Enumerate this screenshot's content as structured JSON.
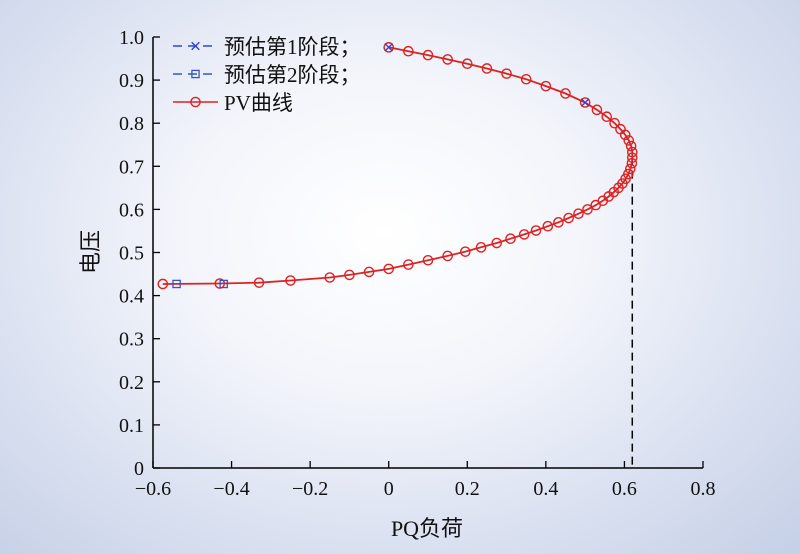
{
  "chart_data": {
    "type": "line",
    "xlabel": "PQ负荷",
    "ylabel": "电压",
    "xlim": [
      -0.6,
      0.8
    ],
    "ylim": [
      0,
      1.0
    ],
    "xticks": [
      -0.6,
      -0.4,
      -0.2,
      0,
      0.2,
      0.4,
      0.6,
      0.8
    ],
    "yticks": [
      0,
      0.1,
      0.2,
      0.3,
      0.4,
      0.5,
      0.6,
      0.7,
      0.8,
      0.9,
      1.0
    ],
    "xtick_labels": [
      "−0.6",
      "−0.4",
      "−0.2",
      "0",
      "0.2",
      "0.4",
      "0.6",
      "0.8"
    ],
    "ytick_labels": [
      "0",
      "0.1",
      "0.2",
      "0.3",
      "0.4",
      "0.5",
      "0.6",
      "0.7",
      "0.8",
      "0.9",
      "1.0"
    ],
    "legend_position": "top-left",
    "nose_point": {
      "x": 0.62,
      "y": 0.72
    },
    "series": [
      {
        "name": "预估第1阶段；",
        "color": "#3344cc",
        "marker": "x",
        "line": "dashed",
        "points": [
          [
            0,
            0.976
          ],
          [
            0.5,
            0.848
          ]
        ]
      },
      {
        "name": "预估第2阶段；",
        "color": "#3355cc",
        "marker": "square",
        "line": "dashed",
        "points": [
          [
            -0.54,
            0.427
          ],
          [
            -0.42,
            0.427
          ]
        ]
      },
      {
        "name": "PV曲线",
        "color": "#dd2222",
        "marker": "circle",
        "line": "solid",
        "points": [
          [
            0,
            0.976
          ],
          [
            0.05,
            0.967
          ],
          [
            0.1,
            0.958
          ],
          [
            0.15,
            0.948
          ],
          [
            0.2,
            0.938
          ],
          [
            0.25,
            0.927
          ],
          [
            0.3,
            0.915
          ],
          [
            0.35,
            0.902
          ],
          [
            0.4,
            0.886
          ],
          [
            0.45,
            0.869
          ],
          [
            0.5,
            0.848
          ],
          [
            0.53,
            0.831
          ],
          [
            0.555,
            0.815
          ],
          [
            0.575,
            0.8
          ],
          [
            0.59,
            0.786
          ],
          [
            0.602,
            0.773
          ],
          [
            0.611,
            0.76
          ],
          [
            0.617,
            0.747
          ],
          [
            0.62,
            0.733
          ],
          [
            0.62,
            0.72
          ],
          [
            0.619,
            0.707
          ],
          [
            0.615,
            0.694
          ],
          [
            0.61,
            0.682
          ],
          [
            0.603,
            0.671
          ],
          [
            0.595,
            0.66
          ],
          [
            0.585,
            0.65
          ],
          [
            0.573,
            0.64
          ],
          [
            0.56,
            0.63
          ],
          [
            0.545,
            0.62
          ],
          [
            0.527,
            0.61
          ],
          [
            0.506,
            0.6
          ],
          [
            0.483,
            0.59
          ],
          [
            0.458,
            0.58
          ],
          [
            0.432,
            0.57
          ],
          [
            0.405,
            0.561
          ],
          [
            0.375,
            0.551
          ],
          [
            0.345,
            0.542
          ],
          [
            0.31,
            0.532
          ],
          [
            0.275,
            0.522
          ],
          [
            0.235,
            0.512
          ],
          [
            0.195,
            0.502
          ],
          [
            0.15,
            0.492
          ],
          [
            0.1,
            0.482
          ],
          [
            0.05,
            0.472
          ],
          [
            0,
            0.462
          ],
          [
            -0.05,
            0.455
          ],
          [
            -0.1,
            0.448
          ],
          [
            -0.15,
            0.442
          ],
          [
            -0.25,
            0.435
          ],
          [
            -0.33,
            0.43
          ],
          [
            -0.43,
            0.428
          ],
          [
            -0.575,
            0.427
          ]
        ]
      }
    ]
  }
}
